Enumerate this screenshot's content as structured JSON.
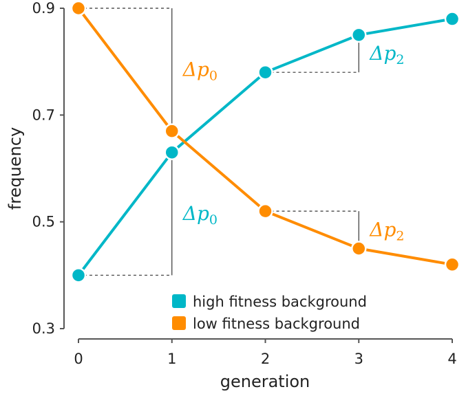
{
  "colors": {
    "high": "#00b7c7",
    "low": "#ff8c00",
    "axis": "#555555",
    "guide": "#333333"
  },
  "chart_data": {
    "type": "line",
    "title": "",
    "xlabel": "generation",
    "ylabel": "frequency",
    "x": [
      0,
      1,
      2,
      3,
      4
    ],
    "xticks": [
      "0",
      "1",
      "2",
      "3",
      "4"
    ],
    "yticks": [
      "0.3",
      "0.5",
      "0.7",
      "0.9"
    ],
    "ylim": [
      0.3,
      0.9
    ],
    "xlim": [
      0,
      4
    ],
    "grid": false,
    "legend_position": "bottom-right",
    "series": [
      {
        "name": "high fitness background",
        "color_key": "high",
        "values": [
          0.4,
          0.63,
          0.78,
          0.85,
          0.88
        ]
      },
      {
        "name": "low fitness background",
        "color_key": "low",
        "values": [
          0.9,
          0.67,
          0.52,
          0.45,
          0.42
        ]
      }
    ],
    "annotations": [
      {
        "series_index": 1,
        "from_x": 0,
        "to_x": 1,
        "symbol": "Δp",
        "subscript": "0",
        "color_key": "low"
      },
      {
        "series_index": 0,
        "from_x": 0,
        "to_x": 1,
        "symbol": "Δp",
        "subscript": "0",
        "color_key": "high"
      },
      {
        "series_index": 0,
        "from_x": 2,
        "to_x": 3,
        "symbol": "Δp",
        "subscript": "2",
        "color_key": "high"
      },
      {
        "series_index": 1,
        "from_x": 2,
        "to_x": 3,
        "symbol": "Δp",
        "subscript": "2",
        "color_key": "low"
      }
    ]
  }
}
